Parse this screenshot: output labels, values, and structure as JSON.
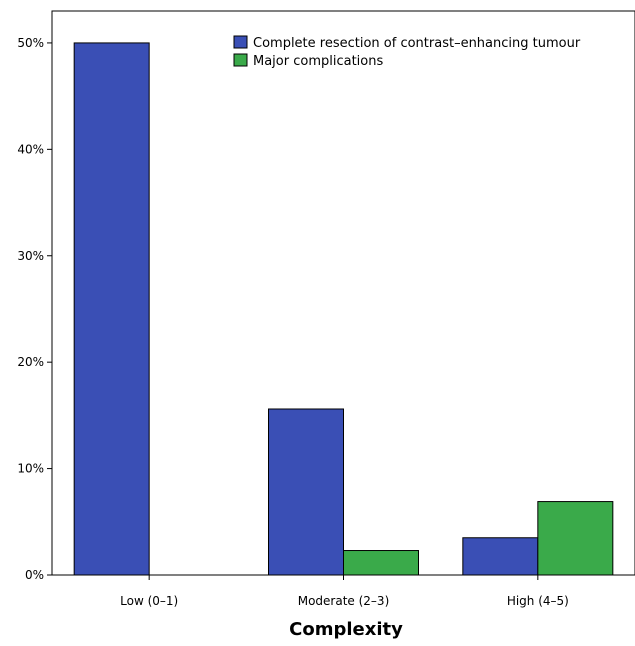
{
  "chart_data": {
    "type": "bar",
    "title": "",
    "xlabel": "Complexity",
    "ylabel": "",
    "categories": [
      "Low (0–1)",
      "Moderate (2–3)",
      "High (4–5)"
    ],
    "series": [
      {
        "name": "Complete resection of contrast–enhancing tumour",
        "color": "#3a4fb5",
        "values": [
          50.0,
          15.6,
          3.5
        ]
      },
      {
        "name": "Major complications",
        "color": "#3aaa4a",
        "values": [
          0.0,
          2.3,
          6.9
        ]
      }
    ],
    "ylim": [
      0,
      53
    ],
    "yticks": [
      0,
      10,
      20,
      30,
      40,
      50
    ],
    "ytick_labels": [
      "0%",
      "10%",
      "20%",
      "30%",
      "40%",
      "50%"
    ],
    "grid": false,
    "legend_position": "top-right"
  }
}
